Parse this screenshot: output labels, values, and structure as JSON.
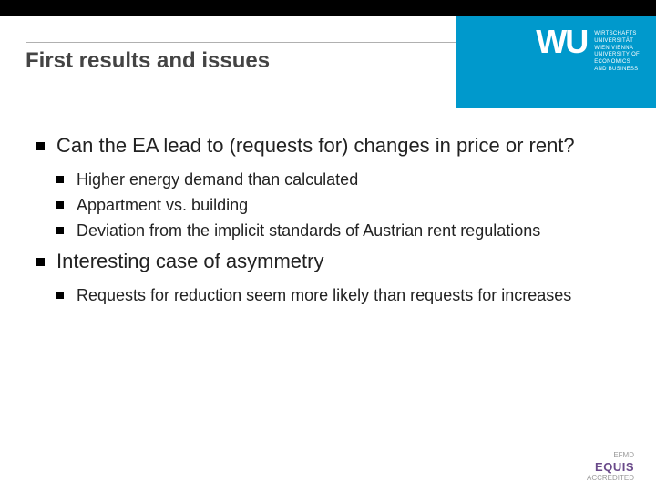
{
  "header": {
    "title": "First results and issues",
    "title_color": "#444444",
    "title_fontsize": 24,
    "band_bg": "#0099cc",
    "top_strip_bg": "#000000"
  },
  "logo": {
    "mark": "WU",
    "sub_lines": "WIRTSCHAFTS\nUNIVERSITÄT\nWIEN VIENNA\nUNIVERSITY OF\nECONOMICS\nAND BUSINESS",
    "text_color": "#ffffff"
  },
  "bullets": [
    {
      "text": "Can the EA lead to (requests for) changes in price or rent?",
      "sub": [
        {
          "text": "Higher energy demand than calculated"
        },
        {
          "text": "Appartment vs. building"
        },
        {
          "text": "Deviation from the implicit standards of Austrian rent regulations"
        }
      ]
    },
    {
      "text": "Interesting case of asymmetry",
      "sub": [
        {
          "text": "Requests for reduction seem more likely than requests for increases"
        }
      ]
    }
  ],
  "footer": {
    "efmd": "EFMD",
    "accredited": "ACCREDITED",
    "equis": "EQUIS",
    "equis_color": "#6a4a8a"
  },
  "style": {
    "bullet_color": "#000000",
    "background_color": "#ffffff",
    "body_text_color": "#222222",
    "l1_fontsize": 22,
    "l2_fontsize": 18
  }
}
